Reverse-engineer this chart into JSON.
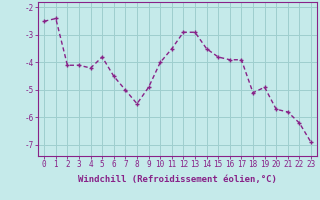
{
  "x": [
    0,
    1,
    2,
    3,
    4,
    5,
    6,
    7,
    8,
    9,
    10,
    11,
    12,
    13,
    14,
    15,
    16,
    17,
    18,
    19,
    20,
    21,
    22,
    23
  ],
  "y": [
    -2.5,
    -2.4,
    -4.1,
    -4.1,
    -4.2,
    -3.8,
    -4.5,
    -5.0,
    -5.5,
    -4.9,
    -4.0,
    -3.5,
    -2.9,
    -2.9,
    -3.5,
    -3.8,
    -3.9,
    -3.9,
    -5.1,
    -4.9,
    -5.7,
    -5.8,
    -6.2,
    -6.9
  ],
  "line_color": "#882288",
  "marker": "+",
  "bg_color": "#c5eaea",
  "grid_color": "#9ecece",
  "xlabel": "Windchill (Refroidissement éolien,°C)",
  "ylim": [
    -7.4,
    -1.8
  ],
  "xlim": [
    -0.5,
    23.5
  ],
  "yticks": [
    -7,
    -6,
    -5,
    -4,
    -3,
    -2
  ],
  "xticks": [
    0,
    1,
    2,
    3,
    4,
    5,
    6,
    7,
    8,
    9,
    10,
    11,
    12,
    13,
    14,
    15,
    16,
    17,
    18,
    19,
    20,
    21,
    22,
    23
  ],
  "xtick_labels": [
    "0",
    "1",
    "2",
    "3",
    "4",
    "5",
    "6",
    "7",
    "8",
    "9",
    "10",
    "11",
    "12",
    "13",
    "14",
    "15",
    "16",
    "17",
    "18",
    "19",
    "20",
    "21",
    "22",
    "23"
  ],
  "purple": "#882288",
  "label_fontsize": 6.5,
  "tick_fontsize": 5.5,
  "linewidth": 1.0,
  "markersize": 3.5
}
